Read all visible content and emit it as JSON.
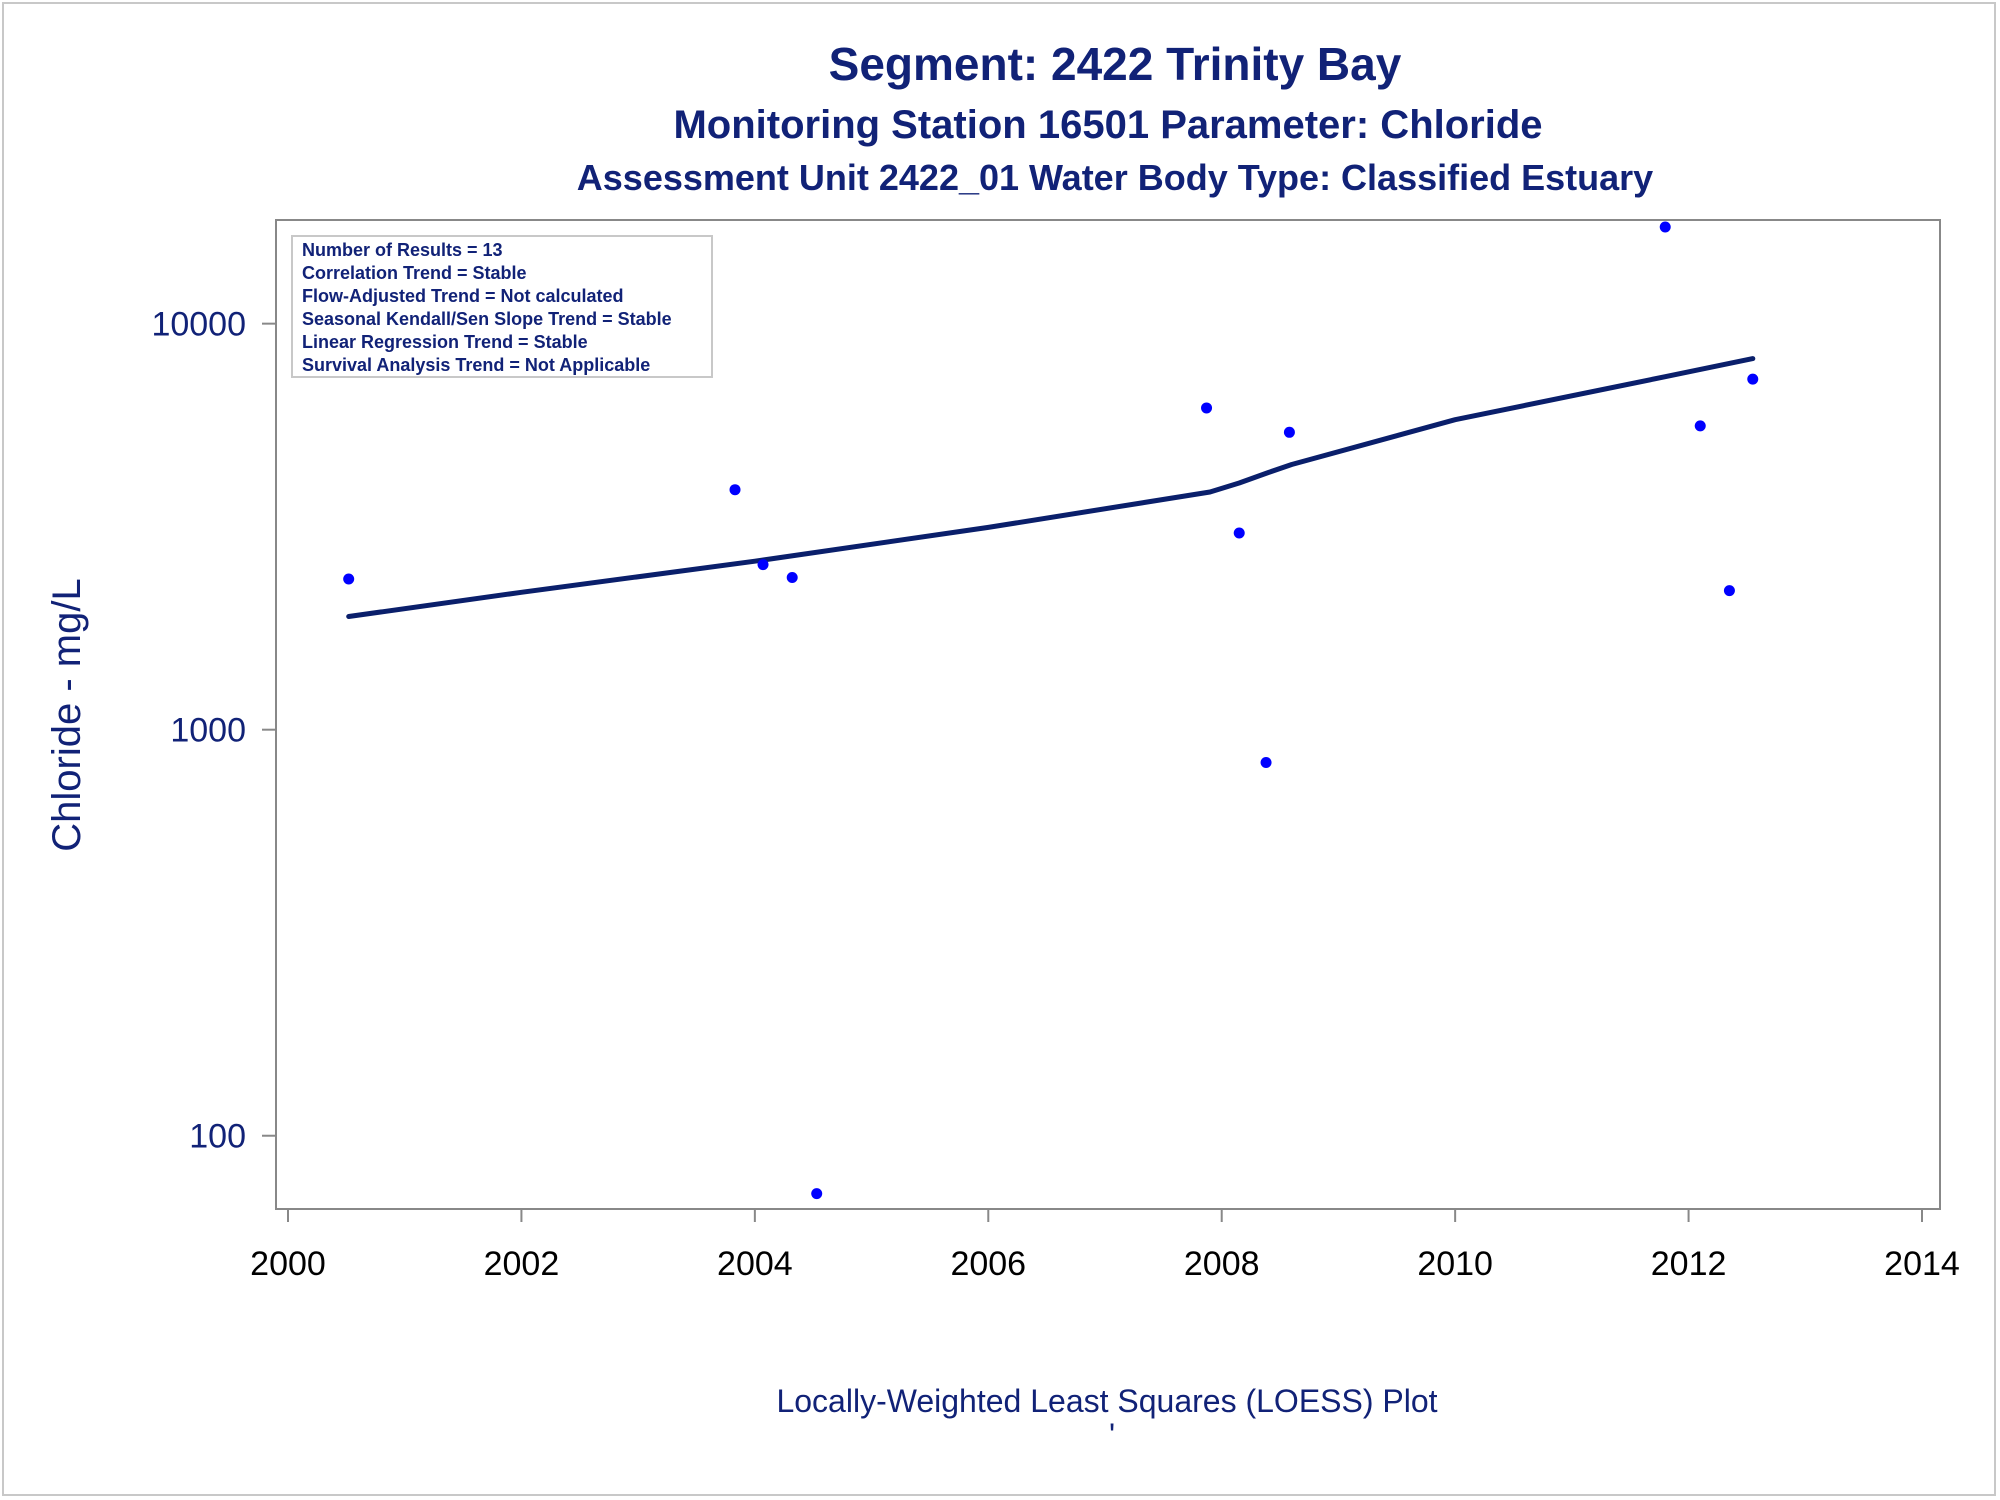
{
  "colors": {
    "text": "#112277",
    "points": "#0000ff",
    "line": "#0a1f6b",
    "axis": "#888888"
  },
  "chart_data": {
    "type": "scatter",
    "title": "Segment: 2422  Trinity Bay",
    "subtitle": "Monitoring Station 16501 Parameter: Chloride",
    "subtitle2": "Assessment Unit 2422_01   Water Body Type: Classified Estuary",
    "xlabel": "",
    "ylabel": "Chloride - mg/L",
    "footnote": "Locally-Weighted Least Squares (LOESS) Plot",
    "footnote2": "'",
    "yscale": "log",
    "xlim": [
      2000,
      2014
    ],
    "ylim": [
      66,
      18000
    ],
    "xticks": [
      2000,
      2002,
      2004,
      2006,
      2008,
      2010,
      2012,
      2014
    ],
    "yticks": [
      100,
      1000,
      10000
    ],
    "ytick_labels": [
      "100",
      "1000",
      "10000"
    ],
    "xtick_labels": [
      "2000",
      "2002",
      "2004",
      "2006",
      "2008",
      "2010",
      "2012",
      "2014"
    ],
    "grid": false,
    "legend_placement": "top-left",
    "info_box": [
      "Number of Results = 13",
      "Correlation Trend = Stable",
      "Flow-Adjusted Trend = Not calculated",
      "Seasonal Kendall/Sen Slope Trend = Stable",
      "Linear Regression Trend = Stable",
      "Survival Analysis Trend = Not Applicable"
    ],
    "series": [
      {
        "type": "scatter",
        "x": [
          2000.52,
          2003.83,
          2004.07,
          2004.32,
          2004.53,
          2007.87,
          2008.15,
          2008.38,
          2008.58,
          2011.8,
          2012.1,
          2012.35,
          2012.55
        ],
        "y": [
          2350,
          3900,
          2550,
          2370,
          72,
          6200,
          3050,
          830,
          5400,
          17300,
          5600,
          2200,
          7300
        ]
      },
      {
        "type": "line",
        "x": [
          2000.52,
          2002.0,
          2004.0,
          2006.0,
          2007.9,
          2008.15,
          2008.4,
          2008.6,
          2010.0,
          2011.8,
          2012.55
        ],
        "y": [
          1900,
          2180,
          2600,
          3150,
          3850,
          4050,
          4300,
          4500,
          5800,
          7400,
          8200
        ]
      }
    ]
  }
}
